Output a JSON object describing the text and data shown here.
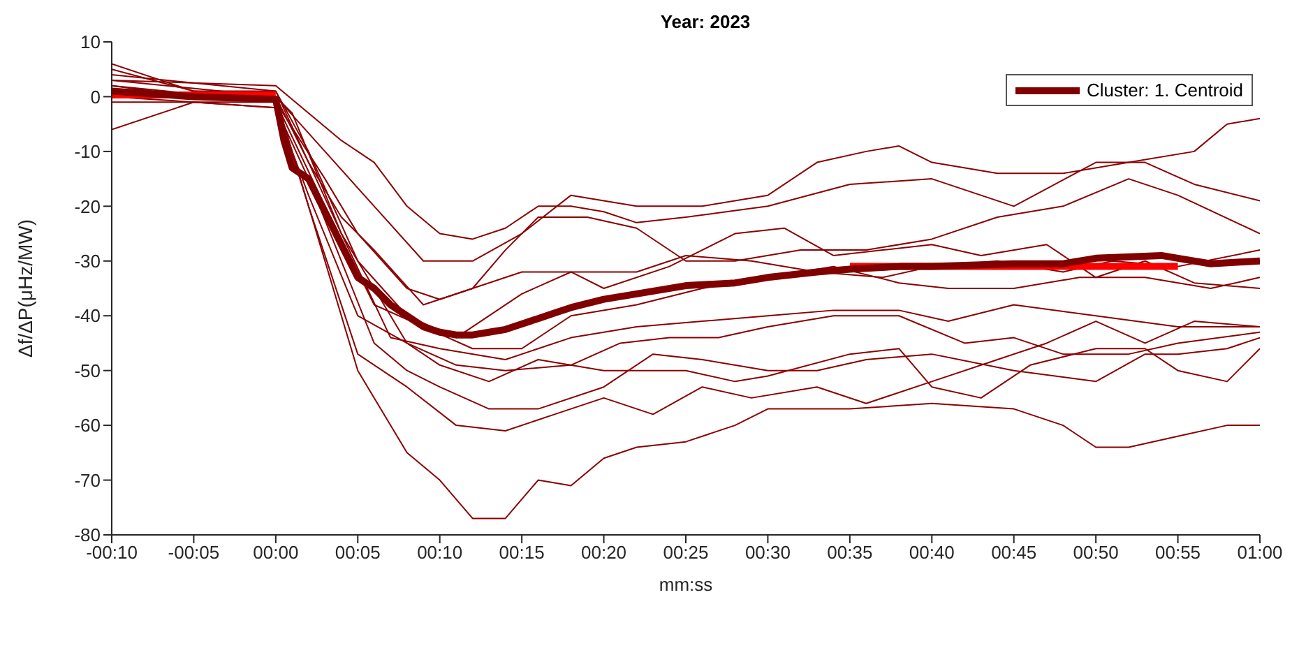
{
  "chart_data": {
    "type": "line",
    "title": "Year: 2023",
    "xlabel": "mm:ss",
    "ylabel": "Δf/ΔP(μHz/MW)",
    "xlim": [
      -10,
      60
    ],
    "ylim": [
      -80,
      10
    ],
    "xticks": [
      {
        "value": -10,
        "label": "-00:10"
      },
      {
        "value": -5,
        "label": "-00:05"
      },
      {
        "value": 0,
        "label": "00:00"
      },
      {
        "value": 5,
        "label": "00:05"
      },
      {
        "value": 10,
        "label": "00:10"
      },
      {
        "value": 15,
        "label": "00:15"
      },
      {
        "value": 20,
        "label": "00:20"
      },
      {
        "value": 25,
        "label": "00:25"
      },
      {
        "value": 30,
        "label": "00:30"
      },
      {
        "value": 35,
        "label": "00:35"
      },
      {
        "value": 40,
        "label": "00:40"
      },
      {
        "value": 45,
        "label": "00:45"
      },
      {
        "value": 50,
        "label": "00:50"
      },
      {
        "value": 55,
        "label": "00:55"
      },
      {
        "value": 60,
        "label": "01:00"
      }
    ],
    "yticks": [
      -80,
      -70,
      -60,
      -50,
      -40,
      -30,
      -20,
      -10,
      0,
      10
    ],
    "grid": false,
    "legend": "top right",
    "series": [
      {
        "color": "#8b0000",
        "x": [
          -10,
          -5,
          0,
          2,
          5,
          8,
          10,
          12,
          14,
          16,
          18,
          20,
          22,
          25,
          28,
          30,
          35,
          40,
          45,
          48,
          50,
          52,
          55,
          58,
          60
        ],
        "values": [
          2,
          0,
          -1,
          -20,
          -50,
          -65,
          -70,
          -77,
          -77,
          -70,
          -71,
          -66,
          -64,
          -63,
          -60,
          -57,
          -57,
          -56,
          -57,
          -60,
          -64,
          -64,
          -62,
          -60,
          -60
        ]
      },
      {
        "color": "#8b0000",
        "x": [
          -10,
          -5,
          0,
          3,
          6,
          9,
          12,
          15,
          18,
          22,
          26,
          30,
          33,
          36,
          38,
          40,
          44,
          48,
          52,
          56,
          58,
          60
        ],
        "values": [
          5,
          1,
          0,
          -10,
          -20,
          -30,
          -30,
          -25,
          -18,
          -20,
          -20,
          -18,
          -12,
          -10,
          -9,
          -12,
          -14,
          -14,
          -12,
          -10,
          -5,
          -4
        ]
      },
      {
        "color": "#8b0000",
        "x": [
          -10,
          0,
          2,
          4,
          6,
          8,
          10,
          12,
          14,
          16,
          18,
          20,
          22,
          25,
          30,
          35,
          40,
          45,
          50,
          53,
          56,
          60
        ],
        "values": [
          3,
          2,
          -3,
          -8,
          -12,
          -20,
          -25,
          -26,
          -24,
          -20,
          -20,
          -21,
          -23,
          -22,
          -20,
          -16,
          -15,
          -20,
          -12,
          -12,
          -16,
          -19
        ]
      },
      {
        "color": "#8b0000",
        "x": [
          -10,
          0,
          2,
          5,
          8,
          10,
          13,
          16,
          20,
          25,
          28,
          30,
          35,
          38,
          40,
          43,
          46,
          50,
          53,
          55,
          58,
          60
        ],
        "values": [
          0,
          -2,
          -18,
          -40,
          -45,
          -49,
          -52,
          -48,
          -50,
          -50,
          -52,
          -51,
          -47,
          -46,
          -53,
          -55,
          -49,
          -46,
          -46,
          -50,
          -52,
          -46
        ]
      },
      {
        "color": "#8b0000",
        "x": [
          -10,
          -5,
          0,
          2,
          4,
          6,
          8,
          10,
          13,
          16,
          20,
          23,
          26,
          30,
          33,
          36,
          40,
          45,
          50,
          53,
          55,
          58,
          60
        ],
        "values": [
          -6,
          -1,
          -2,
          -15,
          -30,
          -45,
          -50,
          -53,
          -57,
          -57,
          -53,
          -47,
          -48,
          -50,
          -50,
          -48,
          -47,
          -50,
          -52,
          -47,
          -47,
          -46,
          -44
        ]
      },
      {
        "color": "#8b0000",
        "x": [
          -10,
          -5,
          0,
          2,
          4,
          6,
          8,
          11,
          14,
          18,
          21,
          24,
          27,
          30,
          34,
          38,
          42,
          45,
          48,
          52,
          55,
          60
        ],
        "values": [
          6,
          1,
          1,
          -12,
          -25,
          -35,
          -45,
          -49,
          -50,
          -49,
          -45,
          -44,
          -44,
          -42,
          -40,
          -40,
          -45,
          -44,
          -47,
          -47,
          -45,
          -43
        ]
      },
      {
        "color": "#8b0000",
        "x": [
          -10,
          0,
          3,
          5,
          8,
          10,
          12,
          15,
          18,
          20,
          24,
          28,
          31,
          34,
          37,
          40,
          43,
          47,
          50,
          53,
          56,
          60
        ],
        "values": [
          2,
          -1,
          -15,
          -25,
          -35,
          -37,
          -35,
          -32,
          -32,
          -35,
          -31,
          -25,
          -24,
          -29,
          -28,
          -27,
          -29,
          -27,
          -33,
          -30,
          -34,
          -35
        ]
      },
      {
        "color": "#8b0000",
        "x": [
          -10,
          0,
          2,
          4,
          6,
          9,
          12,
          14,
          16,
          19,
          22,
          25,
          28,
          32,
          36,
          40,
          44,
          48,
          52,
          55,
          60
        ],
        "values": [
          1,
          0,
          -12,
          -22,
          -28,
          -38,
          -35,
          -28,
          -22,
          -22,
          -24,
          -30,
          -30,
          -28,
          -28,
          -26,
          -22,
          -20,
          -15,
          -18,
          -25
        ]
      },
      {
        "color": "#8b0000",
        "x": [
          -10,
          0,
          2,
          5,
          8,
          11,
          15,
          18,
          22,
          25,
          29,
          33,
          37,
          40,
          44,
          48,
          51,
          55,
          60
        ],
        "values": [
          4,
          1,
          -10,
          -30,
          -40,
          -44,
          -36,
          -32,
          -32,
          -29,
          -30,
          -32,
          -33,
          -31,
          -30,
          -32,
          -30,
          -31,
          -28
        ]
      },
      {
        "color": "#8b0000",
        "x": [
          -10,
          0,
          1,
          4,
          7,
          10,
          14,
          18,
          22,
          26,
          30,
          34,
          38,
          41,
          45,
          50,
          55,
          60
        ],
        "values": [
          3,
          0,
          -3,
          -25,
          -44,
          -46,
          -48,
          -44,
          -42,
          -41,
          -40,
          -39,
          -39,
          -41,
          -38,
          -40,
          -42,
          -42
        ]
      },
      {
        "color": "#8b0000",
        "x": [
          -10,
          0,
          2,
          5,
          8,
          11,
          14,
          17,
          20,
          23,
          26,
          29,
          33,
          36,
          40,
          44,
          47,
          50,
          53,
          56,
          60
        ],
        "values": [
          0,
          0,
          -20,
          -47,
          -53,
          -60,
          -61,
          -58,
          -55,
          -58,
          -53,
          -55,
          -53,
          -56,
          -52,
          -48,
          -45,
          -41,
          -45,
          -41,
          -42
        ]
      },
      {
        "color": "#8b0000",
        "x": [
          -10,
          0,
          3,
          6,
          9,
          12,
          15,
          18,
          22,
          26,
          30,
          34,
          38,
          41,
          45,
          49,
          53,
          57,
          60
        ],
        "values": [
          -1,
          -1,
          -20,
          -38,
          -42,
          -46,
          -46,
          -40,
          -38,
          -35,
          -33,
          -31,
          -34,
          -35,
          -35,
          -33,
          -33,
          -35,
          -33
        ]
      },
      {
        "color": "#ff0000",
        "x": [
          -10,
          0
        ],
        "values": [
          0.3,
          0.3
        ]
      },
      {
        "color": "#ff0000",
        "x": [
          35,
          55
        ],
        "values": [
          -31,
          -31
        ]
      },
      {
        "name": "Cluster: 1. Centroid",
        "color": "#800000",
        "x": [
          -10,
          -5,
          0,
          0.5,
          1,
          2,
          3,
          4,
          5,
          6,
          7,
          8,
          9,
          10,
          11,
          12,
          13,
          14,
          15,
          16,
          17,
          18,
          20,
          22,
          25,
          28,
          30,
          33,
          35,
          38,
          40,
          45,
          48,
          50,
          54,
          55,
          57,
          60
        ],
        "values": [
          1,
          0,
          -0.5,
          -8,
          -13,
          -15,
          -21,
          -27,
          -33,
          -35,
          -38,
          -40,
          -42,
          -43,
          -43.5,
          -43.5,
          -43,
          -42.5,
          -41.5,
          -40.5,
          -39.5,
          -38.5,
          -37,
          -36,
          -34.5,
          -34,
          -33,
          -32,
          -31.5,
          -31,
          -31,
          -30.5,
          -30.5,
          -29.5,
          -29,
          -29.5,
          -30.5,
          -30
        ]
      }
    ]
  }
}
